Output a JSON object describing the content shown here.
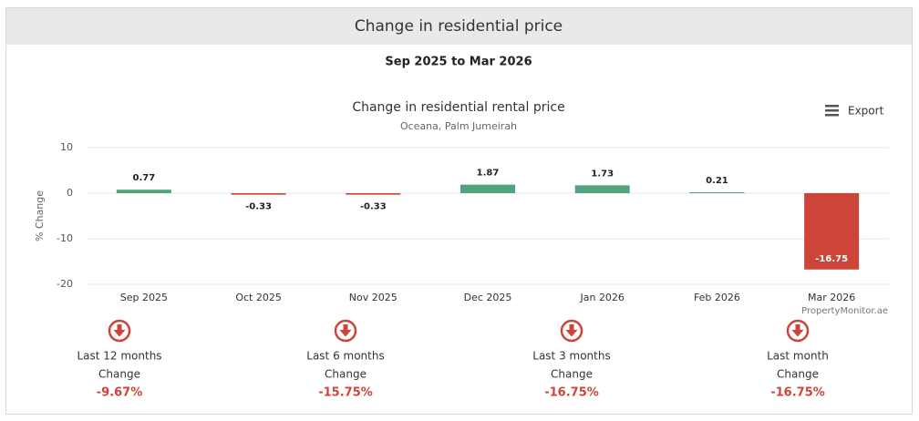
{
  "header": {
    "title": "Change in residential price",
    "subtitle": "Sep 2025 to Mar 2026"
  },
  "chart_data": {
    "type": "bar",
    "title": "Change in residential rental price",
    "subtitle": "Oceana, Palm Jumeirah",
    "y_label": "% Change",
    "export": "Export",
    "credits": "PropertyMonitor.ae",
    "categories": [
      "Sep 2025",
      "Oct 2025",
      "Nov 2025",
      "Dec 2025",
      "Jan 2026",
      "Feb 2026",
      "Mar 2026"
    ],
    "values": [
      0.77,
      -0.33,
      -0.33,
      1.87,
      1.73,
      0.21,
      -16.75
    ],
    "positive_color": "#52a27c",
    "negative_color": "#cc4538",
    "ylim": [
      -20,
      10
    ],
    "yticks": [
      -20,
      -10,
      0,
      10
    ],
    "grid": true
  },
  "summary": [
    {
      "period": "Last 12 months",
      "label": "Change",
      "value": "-9.67%"
    },
    {
      "period": "Last 6 months",
      "label": "Change",
      "value": "-15.75%"
    },
    {
      "period": "Last 3 months",
      "label": "Change",
      "value": "-16.75%"
    },
    {
      "period": "Last month",
      "label": "Change",
      "value": "-16.75%"
    }
  ]
}
